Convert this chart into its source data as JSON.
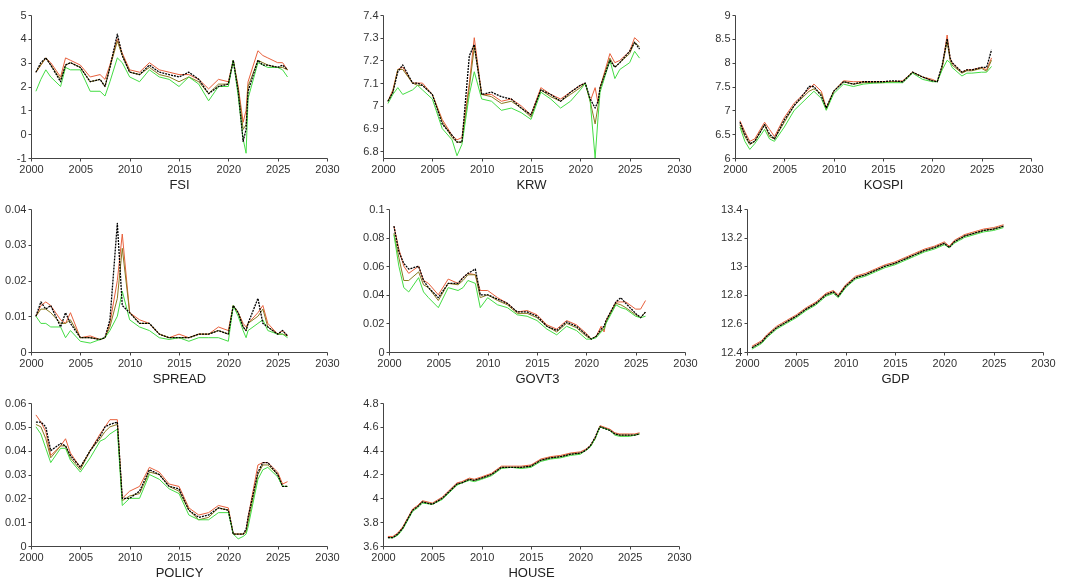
{
  "chart_data": [
    {
      "type": "line",
      "xlabel": "FSI",
      "x": [
        2000.5,
        2001,
        2001.5,
        2002,
        2003,
        2003.5,
        2004,
        2005,
        2006,
        2007,
        2007.5,
        2008,
        2008.75,
        2009.25,
        2010,
        2011,
        2012,
        2013,
        2014,
        2015,
        2016,
        2017,
        2018,
        2019,
        2020,
        2020.5,
        2021,
        2021.5,
        2021.8,
        2022,
        2023,
        2023.5,
        2024,
        2025,
        2025.5,
        2026
      ],
      "xlim": [
        2000,
        2030
      ],
      "xticks": [
        2000,
        2005,
        2010,
        2015,
        2020,
        2025,
        2030
      ],
      "ylim": [
        -1,
        5
      ],
      "yticks": [
        -1,
        0,
        1,
        2,
        3,
        4,
        5
      ],
      "series": [
        {
          "color": "#e8603c",
          "line_style": "solid",
          "values": [
            2.6,
            2.9,
            3.2,
            3.0,
            2.4,
            3.2,
            3.1,
            2.9,
            2.4,
            2.5,
            2.3,
            2.9,
            4.0,
            3.4,
            2.7,
            2.6,
            3.0,
            2.7,
            2.6,
            2.5,
            2.5,
            2.3,
            1.9,
            2.3,
            2.2,
            3.1,
            2.0,
            0.5,
            1.0,
            2.2,
            3.5,
            3.3,
            3.2,
            3.0,
            3.0,
            2.7
          ]
        },
        {
          "color": "#8a7a20",
          "line_style": "solid",
          "values": [
            2.6,
            2.9,
            3.2,
            2.9,
            2.3,
            2.9,
            3.0,
            2.8,
            2.2,
            2.3,
            2.0,
            2.8,
            3.9,
            3.3,
            2.6,
            2.5,
            2.8,
            2.5,
            2.4,
            2.2,
            2.4,
            2.2,
            1.7,
            2.1,
            2.1,
            3.1,
            1.9,
            0.2,
            0.4,
            2.0,
            3.1,
            3.0,
            2.9,
            2.8,
            2.8,
            2.7
          ]
        },
        {
          "color": "#44dd44",
          "line_style": "solid",
          "values": [
            1.8,
            2.3,
            2.7,
            2.4,
            2.0,
            2.8,
            2.7,
            2.7,
            1.8,
            1.8,
            1.6,
            2.2,
            3.2,
            3.0,
            2.4,
            2.2,
            2.7,
            2.4,
            2.3,
            2.0,
            2.4,
            2.1,
            1.4,
            2.0,
            2.0,
            3.1,
            1.6,
            -0.2,
            -0.8,
            1.5,
            3.0,
            2.9,
            2.8,
            2.8,
            2.7,
            2.4
          ]
        },
        {
          "color": "#000000",
          "line_style": "dotted",
          "values": [
            2.6,
            3.0,
            3.2,
            2.9,
            2.2,
            2.9,
            3.0,
            2.8,
            2.2,
            2.3,
            2.0,
            2.8,
            4.2,
            3.3,
            2.6,
            2.5,
            2.9,
            2.6,
            2.5,
            2.4,
            2.6,
            2.3,
            1.7,
            2.0,
            2.1,
            3.1,
            1.8,
            -0.3,
            0.2,
            1.8,
            3.1,
            2.9,
            2.9,
            2.8,
            2.9,
            2.7
          ]
        }
      ]
    },
    {
      "type": "line",
      "xlabel": "KRW",
      "x": [
        2000.5,
        2001,
        2001.5,
        2002,
        2003,
        2003.5,
        2004,
        2005,
        2006,
        2007,
        2007.5,
        2008,
        2008.75,
        2009.25,
        2010,
        2011,
        2012,
        2013,
        2014,
        2015,
        2016,
        2017,
        2018,
        2019,
        2020,
        2020.5,
        2021,
        2021.5,
        2021.8,
        2022,
        2023,
        2023.5,
        2024,
        2025,
        2025.5,
        2026
      ],
      "xlim": [
        2000,
        2030
      ],
      "xticks": [
        2000,
        2005,
        2010,
        2015,
        2020,
        2025,
        2030
      ],
      "ylim": [
        6.77,
        7.4
      ],
      "yticks": [
        6.8,
        6.9,
        7,
        7.1,
        7.2,
        7.3,
        7.4
      ],
      "series": [
        {
          "color": "#e8603c",
          "line_style": "solid",
          "values": [
            7.02,
            7.07,
            7.16,
            7.17,
            7.1,
            7.1,
            7.1,
            7.05,
            6.94,
            6.87,
            6.85,
            6.86,
            7.1,
            7.3,
            7.05,
            7.05,
            7.02,
            7.03,
            7.0,
            6.96,
            7.08,
            7.05,
            7.03,
            7.06,
            7.09,
            7.1,
            7.02,
            7.08,
            7.01,
            7.08,
            7.23,
            7.19,
            7.2,
            7.24,
            7.3,
            7.28
          ]
        },
        {
          "color": "#8a7a20",
          "line_style": "solid",
          "values": [
            7.02,
            7.06,
            7.16,
            7.16,
            7.1,
            7.09,
            7.09,
            7.05,
            6.93,
            6.86,
            6.84,
            6.84,
            7.08,
            7.26,
            7.05,
            7.04,
            7.01,
            7.02,
            6.99,
            6.95,
            7.07,
            7.04,
            7.02,
            7.05,
            7.08,
            7.1,
            7.02,
            6.92,
            7.0,
            7.08,
            7.21,
            7.17,
            7.19,
            7.23,
            7.28,
            7.26
          ]
        },
        {
          "color": "#44dd44",
          "line_style": "solid",
          "values": [
            7.01,
            7.05,
            7.08,
            7.05,
            7.07,
            7.09,
            7.07,
            7.03,
            6.9,
            6.85,
            6.78,
            6.83,
            7.05,
            7.15,
            7.03,
            7.02,
            6.98,
            6.99,
            6.97,
            6.94,
            7.06,
            7.03,
            6.99,
            7.02,
            7.07,
            7.1,
            7.02,
            6.77,
            6.95,
            7.06,
            7.2,
            7.12,
            7.16,
            7.19,
            7.24,
            7.21
          ]
        },
        {
          "color": "#000000",
          "line_style": "dotted",
          "values": [
            7.02,
            7.06,
            7.15,
            7.18,
            7.1,
            7.1,
            7.09,
            7.05,
            6.92,
            6.87,
            6.84,
            6.84,
            7.22,
            7.27,
            7.05,
            7.06,
            7.04,
            7.03,
            6.99,
            6.96,
            7.07,
            7.05,
            7.02,
            7.06,
            7.09,
            7.1,
            7.03,
            6.99,
            7.02,
            7.08,
            7.2,
            7.17,
            7.19,
            7.24,
            7.28,
            7.25
          ]
        }
      ]
    },
    {
      "type": "line",
      "xlabel": "KOSPI",
      "x": [
        2000.5,
        2001,
        2001.5,
        2002,
        2003,
        2003.5,
        2004,
        2005,
        2006,
        2007,
        2007.5,
        2008,
        2008.75,
        2009.25,
        2010,
        2011,
        2012,
        2013,
        2014,
        2015,
        2016,
        2017,
        2018,
        2019,
        2020,
        2020.5,
        2021,
        2021.5,
        2021.8,
        2022,
        2023,
        2023.5,
        2024,
        2025,
        2025.5,
        2026
      ],
      "xlim": [
        2000,
        2030
      ],
      "xticks": [
        2000,
        2005,
        2010,
        2015,
        2020,
        2025,
        2030
      ],
      "ylim": [
        6,
        9
      ],
      "yticks": [
        6,
        6.5,
        7,
        7.5,
        8,
        8.5,
        9
      ],
      "series": [
        {
          "color": "#e8603c",
          "line_style": "solid",
          "values": [
            6.78,
            6.55,
            6.35,
            6.4,
            6.75,
            6.6,
            6.45,
            6.85,
            7.15,
            7.35,
            7.45,
            7.55,
            7.4,
            7.05,
            7.4,
            7.62,
            7.6,
            7.6,
            7.6,
            7.6,
            7.6,
            7.62,
            7.8,
            7.7,
            7.65,
            7.6,
            7.9,
            8.58,
            8.1,
            8.0,
            7.8,
            7.85,
            7.85,
            7.9,
            7.85,
            8.1
          ]
        },
        {
          "color": "#8a7a20",
          "line_style": "solid",
          "values": [
            6.7,
            6.45,
            6.28,
            6.35,
            6.7,
            6.45,
            6.4,
            6.75,
            7.1,
            7.3,
            7.4,
            7.45,
            7.35,
            7.02,
            7.4,
            7.6,
            7.55,
            7.58,
            7.58,
            7.58,
            7.6,
            7.6,
            7.8,
            7.7,
            7.62,
            7.6,
            7.9,
            8.45,
            8.05,
            7.95,
            7.78,
            7.83,
            7.83,
            7.88,
            7.82,
            8.05
          ]
        },
        {
          "color": "#44dd44",
          "line_style": "solid",
          "values": [
            6.65,
            6.35,
            6.18,
            6.3,
            6.6,
            6.4,
            6.35,
            6.65,
            7.0,
            7.2,
            7.3,
            7.4,
            7.25,
            7.0,
            7.35,
            7.55,
            7.5,
            7.55,
            7.57,
            7.58,
            7.58,
            7.58,
            7.78,
            7.65,
            7.6,
            7.6,
            7.85,
            8.05,
            8.0,
            7.9,
            7.72,
            7.78,
            7.78,
            7.8,
            7.8,
            7.92
          ]
        },
        {
          "color": "#000000",
          "line_style": "dotted",
          "values": [
            6.75,
            6.5,
            6.3,
            6.35,
            6.7,
            6.5,
            6.4,
            6.8,
            7.1,
            7.35,
            7.5,
            7.5,
            7.3,
            7.05,
            7.4,
            7.6,
            7.55,
            7.6,
            7.6,
            7.6,
            7.62,
            7.6,
            7.8,
            7.7,
            7.62,
            7.6,
            7.95,
            8.5,
            8.1,
            8.0,
            7.8,
            7.85,
            7.85,
            7.9,
            7.9,
            8.27
          ]
        }
      ]
    },
    {
      "type": "line",
      "xlabel": "SPREAD",
      "x": [
        2000.5,
        2001,
        2001.5,
        2002,
        2003,
        2003.5,
        2004,
        2005,
        2006,
        2007,
        2007.5,
        2008,
        2008.75,
        2009.25,
        2010,
        2011,
        2012,
        2013,
        2014,
        2015,
        2016,
        2017,
        2018,
        2019,
        2020,
        2020.5,
        2021,
        2021.5,
        2021.8,
        2022,
        2023,
        2023.5,
        2024,
        2025,
        2025.5,
        2026
      ],
      "xlim": [
        2000,
        2030
      ],
      "xticks": [
        2000,
        2005,
        2010,
        2015,
        2020,
        2025,
        2030
      ],
      "ylim": [
        0,
        0.04
      ],
      "yticks": [
        0,
        0.01,
        0.02,
        0.03,
        0.04
      ],
      "series": [
        {
          "color": "#e8603c",
          "line_style": "solid",
          "values": [
            0.01,
            0.013,
            0.014,
            0.013,
            0.009,
            0.008,
            0.011,
            0.004,
            0.0045,
            0.0035,
            0.004,
            0.008,
            0.02,
            0.033,
            0.011,
            0.009,
            0.008,
            0.005,
            0.004,
            0.005,
            0.004,
            0.005,
            0.005,
            0.007,
            0.006,
            0.013,
            0.011,
            0.008,
            0.007,
            0.008,
            0.011,
            0.013,
            0.008,
            0.005,
            0.006,
            0.0045
          ]
        },
        {
          "color": "#8a7a20",
          "line_style": "solid",
          "values": [
            0.01,
            0.012,
            0.012,
            0.011,
            0.008,
            0.008,
            0.009,
            0.004,
            0.004,
            0.0035,
            0.004,
            0.007,
            0.015,
            0.029,
            0.011,
            0.008,
            0.008,
            0.005,
            0.004,
            0.004,
            0.004,
            0.005,
            0.005,
            0.006,
            0.005,
            0.013,
            0.011,
            0.007,
            0.006,
            0.008,
            0.01,
            0.012,
            0.007,
            0.005,
            0.005,
            0.0045
          ]
        },
        {
          "color": "#44dd44",
          "line_style": "solid",
          "values": [
            0.01,
            0.008,
            0.008,
            0.007,
            0.007,
            0.004,
            0.006,
            0.003,
            0.0025,
            0.0035,
            0.004,
            0.006,
            0.01,
            0.017,
            0.009,
            0.007,
            0.006,
            0.004,
            0.0035,
            0.004,
            0.003,
            0.004,
            0.004,
            0.004,
            0.003,
            0.013,
            0.01,
            0.006,
            0.004,
            0.006,
            0.008,
            0.009,
            0.006,
            0.005,
            0.005,
            0.004
          ]
        },
        {
          "color": "#000000",
          "line_style": "dotted",
          "values": [
            0.01,
            0.014,
            0.012,
            0.013,
            0.007,
            0.011,
            0.008,
            0.004,
            0.004,
            0.0035,
            0.004,
            0.009,
            0.036,
            0.013,
            0.011,
            0.008,
            0.008,
            0.005,
            0.004,
            0.004,
            0.004,
            0.005,
            0.005,
            0.006,
            0.005,
            0.013,
            0.011,
            0.007,
            0.006,
            0.008,
            0.015,
            0.008,
            0.007,
            0.005,
            0.006,
            0.0045
          ]
        }
      ]
    },
    {
      "type": "line",
      "xlabel": "GOVT3",
      "x": [
        2000.5,
        2001,
        2001.5,
        2002,
        2003,
        2003.5,
        2004,
        2005,
        2006,
        2007,
        2007.5,
        2008,
        2008.75,
        2009.25,
        2010,
        2011,
        2012,
        2013,
        2014,
        2015,
        2016,
        2017,
        2018,
        2019,
        2020,
        2020.5,
        2021,
        2021.5,
        2021.8,
        2022,
        2023,
        2023.5,
        2024,
        2025,
        2025.5,
        2026
      ],
      "xlim": [
        2000,
        2030
      ],
      "xticks": [
        2000,
        2005,
        2010,
        2015,
        2020,
        2025,
        2030
      ],
      "ylim": [
        0,
        0.1
      ],
      "yticks": [
        0,
        0.02,
        0.04,
        0.06,
        0.08,
        0.1
      ],
      "series": [
        {
          "color": "#e8603c",
          "line_style": "solid",
          "values": [
            0.088,
            0.072,
            0.06,
            0.055,
            0.06,
            0.05,
            0.048,
            0.04,
            0.051,
            0.048,
            0.052,
            0.055,
            0.054,
            0.043,
            0.043,
            0.038,
            0.034,
            0.028,
            0.029,
            0.026,
            0.019,
            0.016,
            0.022,
            0.019,
            0.013,
            0.009,
            0.011,
            0.018,
            0.014,
            0.022,
            0.035,
            0.035,
            0.035,
            0.03,
            0.03,
            0.036
          ]
        },
        {
          "color": "#8a7a20",
          "line_style": "solid",
          "values": [
            0.083,
            0.066,
            0.05,
            0.05,
            0.056,
            0.047,
            0.045,
            0.036,
            0.048,
            0.047,
            0.05,
            0.054,
            0.054,
            0.038,
            0.04,
            0.036,
            0.033,
            0.027,
            0.027,
            0.024,
            0.018,
            0.014,
            0.02,
            0.017,
            0.011,
            0.009,
            0.011,
            0.015,
            0.016,
            0.021,
            0.034,
            0.033,
            0.031,
            0.026,
            0.024,
            0.028
          ]
        },
        {
          "color": "#44dd44",
          "line_style": "solid",
          "values": [
            0.082,
            0.06,
            0.045,
            0.042,
            0.052,
            0.042,
            0.038,
            0.031,
            0.045,
            0.043,
            0.045,
            0.05,
            0.048,
            0.031,
            0.038,
            0.033,
            0.031,
            0.026,
            0.025,
            0.022,
            0.016,
            0.012,
            0.018,
            0.015,
            0.009,
            0.009,
            0.01,
            0.014,
            0.016,
            0.02,
            0.033,
            0.031,
            0.03,
            0.025,
            0.024,
            0.025
          ]
        },
        {
          "color": "#000000",
          "line_style": "dotted",
          "values": [
            0.088,
            0.07,
            0.062,
            0.058,
            0.06,
            0.05,
            0.045,
            0.038,
            0.048,
            0.048,
            0.052,
            0.055,
            0.058,
            0.04,
            0.04,
            0.037,
            0.034,
            0.028,
            0.028,
            0.025,
            0.018,
            0.015,
            0.021,
            0.018,
            0.012,
            0.009,
            0.011,
            0.016,
            0.018,
            0.022,
            0.035,
            0.038,
            0.034,
            0.027,
            0.024,
            0.028
          ]
        }
      ]
    },
    {
      "type": "line",
      "xlabel": "GDP",
      "x": [
        2000.5,
        2001,
        2001.5,
        2002,
        2003,
        2003.5,
        2004,
        2005,
        2006,
        2007,
        2007.5,
        2008,
        2008.75,
        2009.25,
        2010,
        2011,
        2012,
        2013,
        2014,
        2015,
        2016,
        2017,
        2018,
        2019,
        2020,
        2020.5,
        2021,
        2021.5,
        2021.8,
        2022,
        2023,
        2023.5,
        2024,
        2025,
        2025.5,
        2026
      ],
      "xlim": [
        2000,
        2030
      ],
      "xticks": [
        2000,
        2005,
        2010,
        2015,
        2020,
        2025,
        2030
      ],
      "ylim": [
        12.4,
        13.4
      ],
      "yticks": [
        12.4,
        12.6,
        12.8,
        13,
        13.2,
        13.4
      ],
      "series": [
        {
          "color": "#e8603c",
          "line_style": "solid",
          "values": [
            12.44,
            12.46,
            12.48,
            12.52,
            12.58,
            12.6,
            12.62,
            12.66,
            12.71,
            12.75,
            12.78,
            12.81,
            12.83,
            12.8,
            12.87,
            12.93,
            12.95,
            12.98,
            13.01,
            13.03,
            13.06,
            13.09,
            13.12,
            13.14,
            13.17,
            13.14,
            13.18,
            13.2,
            13.21,
            13.22,
            13.24,
            13.25,
            13.26,
            13.27,
            13.28,
            13.29
          ]
        },
        {
          "color": "#8a7a20",
          "line_style": "solid",
          "values": [
            12.43,
            12.45,
            12.47,
            12.51,
            12.57,
            12.59,
            12.61,
            12.65,
            12.7,
            12.74,
            12.77,
            12.8,
            12.82,
            12.79,
            12.86,
            12.92,
            12.94,
            12.97,
            13.0,
            13.02,
            13.05,
            13.08,
            13.11,
            13.13,
            13.16,
            13.13,
            13.17,
            13.19,
            13.2,
            13.21,
            13.23,
            13.24,
            13.25,
            13.26,
            13.27,
            13.28
          ]
        },
        {
          "color": "#44dd44",
          "line_style": "solid",
          "values": [
            12.42,
            12.44,
            12.46,
            12.5,
            12.56,
            12.58,
            12.6,
            12.64,
            12.69,
            12.73,
            12.76,
            12.79,
            12.81,
            12.78,
            12.85,
            12.91,
            12.93,
            12.96,
            12.99,
            13.01,
            13.04,
            13.07,
            13.1,
            13.12,
            13.15,
            13.13,
            13.16,
            13.18,
            13.19,
            13.2,
            13.22,
            13.23,
            13.24,
            13.25,
            13.26,
            13.27
          ]
        },
        {
          "color": "#000000",
          "line_style": "dotted",
          "values": [
            12.43,
            12.45,
            12.47,
            12.51,
            12.57,
            12.59,
            12.61,
            12.65,
            12.7,
            12.74,
            12.77,
            12.8,
            12.82,
            12.79,
            12.86,
            12.92,
            12.94,
            12.97,
            13.0,
            13.02,
            13.05,
            13.08,
            13.11,
            13.13,
            13.16,
            13.13,
            13.17,
            13.19,
            13.2,
            13.21,
            13.23,
            13.24,
            13.25,
            13.26,
            13.27,
            13.28
          ]
        }
      ]
    },
    {
      "type": "line",
      "xlabel": "POLICY",
      "x": [
        2000.5,
        2001,
        2001.5,
        2002,
        2003,
        2003.5,
        2004,
        2005,
        2006,
        2007,
        2007.5,
        2008,
        2008.75,
        2009.25,
        2010,
        2011,
        2012,
        2013,
        2014,
        2015,
        2016,
        2017,
        2018,
        2019,
        2020,
        2020.5,
        2021,
        2021.5,
        2021.8,
        2022,
        2023,
        2023.5,
        2024,
        2025,
        2025.5,
        2026
      ],
      "xlim": [
        2000,
        2030
      ],
      "xticks": [
        2000,
        2005,
        2010,
        2015,
        2020,
        2025,
        2030
      ],
      "ylim": [
        0,
        0.06
      ],
      "yticks": [
        0,
        0.01,
        0.02,
        0.03,
        0.04,
        0.05,
        0.06
      ],
      "series": [
        {
          "color": "#e8603c",
          "line_style": "solid",
          "values": [
            0.055,
            0.052,
            0.048,
            0.038,
            0.042,
            0.045,
            0.039,
            0.033,
            0.04,
            0.047,
            0.05,
            0.053,
            0.053,
            0.02,
            0.023,
            0.025,
            0.033,
            0.031,
            0.026,
            0.025,
            0.016,
            0.013,
            0.014,
            0.017,
            0.016,
            0.005,
            0.005,
            0.005,
            0.006,
            0.012,
            0.034,
            0.035,
            0.035,
            0.031,
            0.026,
            0.027
          ]
        },
        {
          "color": "#8a7a20",
          "line_style": "solid",
          "values": [
            0.051,
            0.05,
            0.045,
            0.037,
            0.042,
            0.042,
            0.037,
            0.032,
            0.04,
            0.045,
            0.048,
            0.05,
            0.051,
            0.019,
            0.021,
            0.022,
            0.031,
            0.03,
            0.025,
            0.023,
            0.015,
            0.011,
            0.012,
            0.016,
            0.015,
            0.005,
            0.005,
            0.005,
            0.006,
            0.01,
            0.03,
            0.034,
            0.034,
            0.03,
            0.025,
            0.025
          ]
        },
        {
          "color": "#44dd44",
          "line_style": "solid",
          "values": [
            0.05,
            0.047,
            0.041,
            0.035,
            0.041,
            0.041,
            0.036,
            0.031,
            0.037,
            0.044,
            0.045,
            0.047,
            0.049,
            0.017,
            0.02,
            0.02,
            0.03,
            0.028,
            0.024,
            0.022,
            0.013,
            0.011,
            0.011,
            0.014,
            0.014,
            0.005,
            0.003,
            0.004,
            0.005,
            0.008,
            0.028,
            0.032,
            0.033,
            0.029,
            0.025,
            0.025
          ]
        },
        {
          "color": "#000000",
          "line_style": "dotted",
          "values": [
            0.052,
            0.052,
            0.05,
            0.04,
            0.043,
            0.042,
            0.038,
            0.033,
            0.04,
            0.046,
            0.05,
            0.051,
            0.052,
            0.02,
            0.02,
            0.023,
            0.032,
            0.03,
            0.025,
            0.024,
            0.015,
            0.012,
            0.013,
            0.016,
            0.015,
            0.005,
            0.005,
            0.005,
            0.007,
            0.012,
            0.031,
            0.035,
            0.035,
            0.03,
            0.025,
            0.025
          ]
        }
      ]
    },
    {
      "type": "line",
      "xlabel": "HOUSE",
      "x": [
        2000.5,
        2001,
        2001.5,
        2002,
        2003,
        2003.5,
        2004,
        2005,
        2006,
        2007,
        2007.5,
        2008,
        2008.75,
        2009.25,
        2010,
        2011,
        2012,
        2013,
        2014,
        2015,
        2016,
        2017,
        2018,
        2019,
        2020,
        2020.5,
        2021,
        2021.5,
        2021.8,
        2022,
        2023,
        2023.5,
        2024,
        2025,
        2025.5,
        2026
      ],
      "xlim": [
        2000,
        2030
      ],
      "xticks": [
        2000,
        2005,
        2010,
        2015,
        2020,
        2025,
        2030
      ],
      "ylim": [
        3.6,
        4.8
      ],
      "yticks": [
        3.6,
        3.8,
        4,
        4.2,
        4.4,
        4.6,
        4.8
      ],
      "series": [
        {
          "color": "#e8603c",
          "line_style": "solid",
          "values": [
            3.68,
            3.68,
            3.71,
            3.76,
            3.91,
            3.94,
            3.98,
            3.96,
            4.01,
            4.09,
            4.13,
            4.14,
            4.17,
            4.16,
            4.18,
            4.21,
            4.27,
            4.27,
            4.27,
            4.28,
            4.33,
            4.35,
            4.36,
            4.38,
            4.39,
            4.41,
            4.44,
            4.51,
            4.57,
            4.61,
            4.58,
            4.55,
            4.54,
            4.54,
            4.54,
            4.55
          ]
        },
        {
          "color": "#8a7a20",
          "line_style": "solid",
          "values": [
            3.67,
            3.67,
            3.7,
            3.75,
            3.9,
            3.93,
            3.97,
            3.95,
            4.0,
            4.08,
            4.12,
            4.13,
            4.16,
            4.15,
            4.17,
            4.2,
            4.26,
            4.26,
            4.26,
            4.27,
            4.32,
            4.34,
            4.35,
            4.37,
            4.38,
            4.4,
            4.43,
            4.5,
            4.56,
            4.6,
            4.57,
            4.54,
            4.53,
            4.53,
            4.53,
            4.54
          ]
        },
        {
          "color": "#44dd44",
          "line_style": "solid",
          "values": [
            3.67,
            3.67,
            3.69,
            3.74,
            3.89,
            3.92,
            3.96,
            3.95,
            3.99,
            4.07,
            4.11,
            4.13,
            4.15,
            4.14,
            4.16,
            4.19,
            4.25,
            4.26,
            4.25,
            4.26,
            4.31,
            4.33,
            4.34,
            4.36,
            4.37,
            4.4,
            4.43,
            4.5,
            4.56,
            4.6,
            4.57,
            4.53,
            4.52,
            4.52,
            4.53,
            4.54
          ]
        },
        {
          "color": "#000000",
          "line_style": "dotted",
          "values": [
            3.67,
            3.67,
            3.7,
            3.75,
            3.9,
            3.93,
            3.97,
            3.95,
            4.0,
            4.08,
            4.12,
            4.13,
            4.16,
            4.15,
            4.17,
            4.2,
            4.26,
            4.26,
            4.26,
            4.27,
            4.32,
            4.34,
            4.35,
            4.37,
            4.38,
            4.4,
            4.44,
            4.51,
            4.57,
            4.6,
            4.57,
            4.54,
            4.53,
            4.53,
            4.53,
            4.54
          ]
        }
      ]
    }
  ]
}
